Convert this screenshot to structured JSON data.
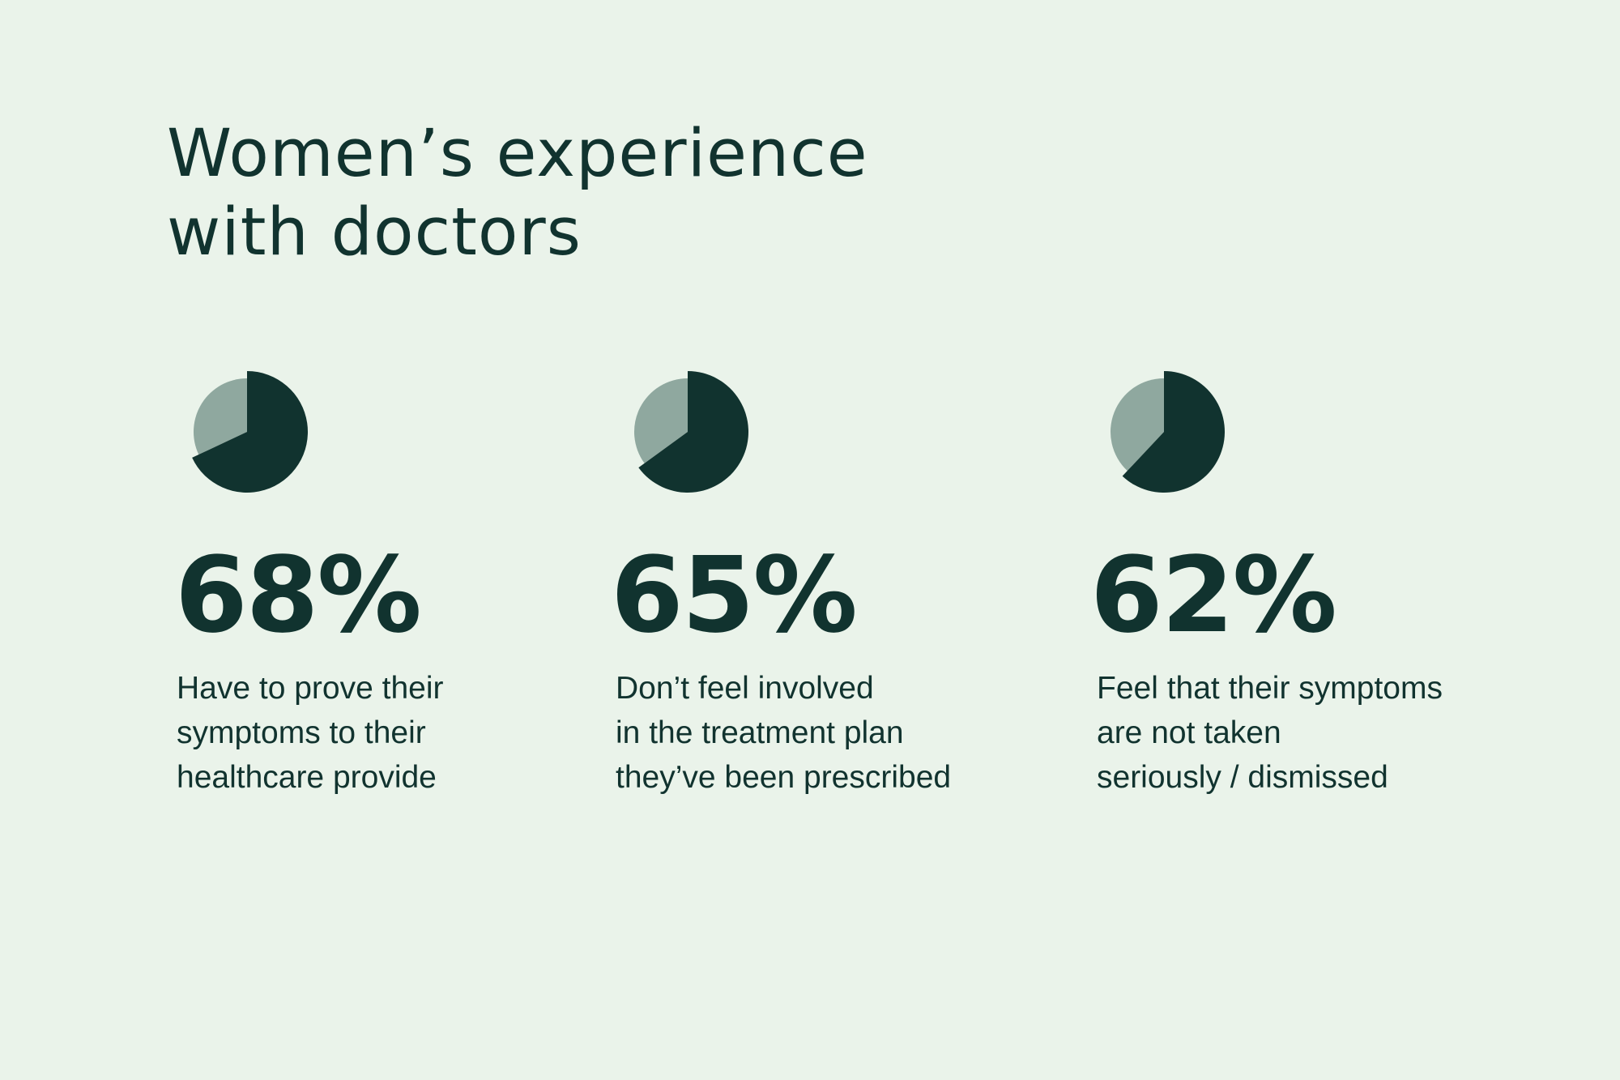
{
  "colors": {
    "background": "#EAF3EA",
    "primary": "#11332F",
    "secondary": "#8FA89F"
  },
  "title_lines": [
    "Women’s experience",
    "with doctors"
  ],
  "chart_data": {
    "type": "pie",
    "title": "Women’s experience with doctors",
    "items": [
      {
        "value": 68,
        "label": "68%",
        "description_lines": [
          "Have to prove their",
          "symptoms to their",
          "healthcare provide"
        ]
      },
      {
        "value": 65,
        "label": "65%",
        "description_lines": [
          "Don’t feel involved",
          "in the treatment plan",
          "they’ve been prescribed"
        ]
      },
      {
        "value": 62,
        "label": "62%",
        "description_lines": [
          "Feel that their symptoms",
          "are not taken",
          "seriously / dismissed"
        ]
      }
    ]
  }
}
